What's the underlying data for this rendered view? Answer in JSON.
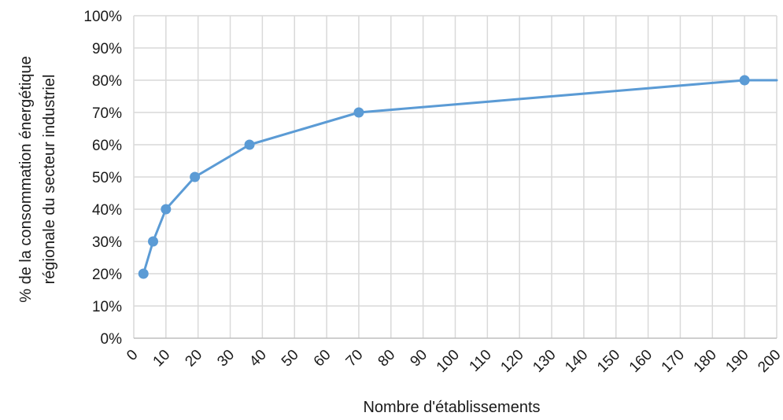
{
  "chart_data": {
    "type": "line",
    "xlabel": "Nombre d'établissements",
    "ylabel_lines": [
      "% de la consommation énergétique",
      "régionale du secteur industriel"
    ],
    "x_tick_labels": [
      "0",
      "10",
      "20",
      "30",
      "40",
      "50",
      "60",
      "70",
      "80",
      "90",
      "100",
      "110",
      "120",
      "130",
      "140",
      "150",
      "160",
      "170",
      "180",
      "190",
      "200"
    ],
    "y_tick_labels": [
      "0%",
      "10%",
      "20%",
      "30%",
      "40%",
      "50%",
      "60%",
      "70%",
      "80%",
      "90%",
      "100%"
    ],
    "ylim": [
      0,
      100
    ],
    "grid": true,
    "legend": "none",
    "series": [
      {
        "x": [
          3,
          6,
          10,
          19,
          36,
          70,
          190,
          200
        ],
        "y": [
          20,
          30,
          40,
          50,
          60,
          70,
          80,
          80
        ],
        "markers": [
          true,
          true,
          true,
          true,
          true,
          true,
          true,
          false
        ]
      }
    ],
    "colors": {
      "line": "#5b9bd5",
      "grid": "#d9d9d9",
      "axis": "#bfbfbf"
    }
  }
}
